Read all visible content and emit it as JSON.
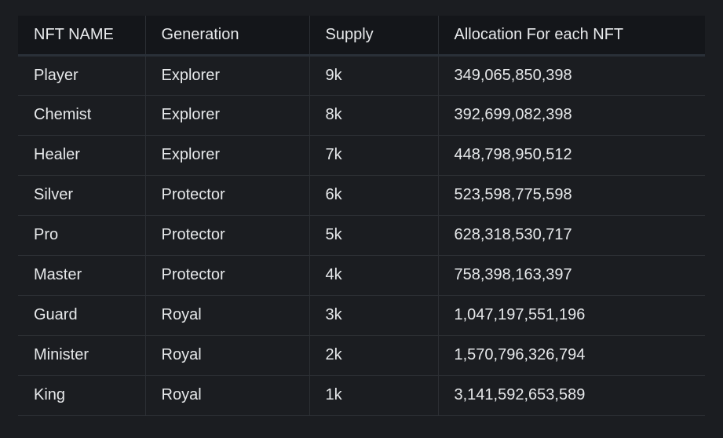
{
  "table": {
    "headers": [
      "NFT NAME",
      "Generation",
      "Supply",
      "Allocation For each NFT"
    ],
    "rows": [
      [
        "Player",
        "Explorer",
        "9k",
        "349,065,850,398"
      ],
      [
        "Chemist",
        "Explorer",
        "8k",
        "392,699,082,398"
      ],
      [
        "Healer",
        "Explorer",
        "7k",
        "448,798,950,512"
      ],
      [
        "Silver",
        "Protector",
        "6k",
        "523,598,775,598"
      ],
      [
        "Pro",
        "Protector",
        "5k",
        "628,318,530,717"
      ],
      [
        "Master",
        "Protector",
        "4k",
        "758,398,163,397"
      ],
      [
        "Guard",
        "Royal",
        "3k",
        "1,047,197,551,196"
      ],
      [
        "Minister",
        "Royal",
        "2k",
        "1,570,796,326,794"
      ],
      [
        "King",
        "Royal",
        "1k",
        "3,141,592,653,589"
      ]
    ]
  }
}
